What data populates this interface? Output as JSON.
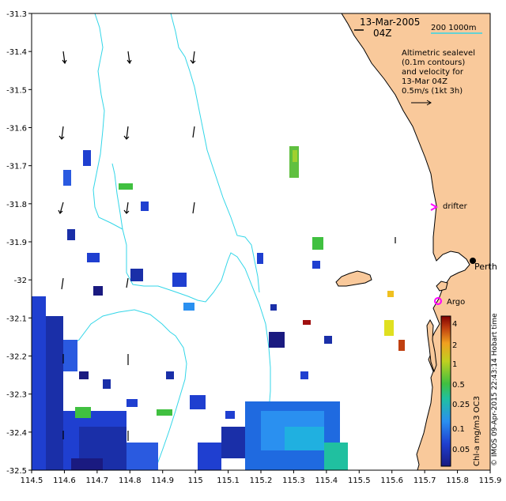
{
  "map": {
    "date_label": "13-Mar-2005",
    "time_label": "04Z",
    "scale_label": "200 1000m",
    "legend_lines": [
      "Altimetric sealevel",
      "(0.1m contours)",
      "and velocity for",
      "13-Mar 04Z",
      "0.5m/s (1kt 3h)"
    ],
    "drifter_label": "drifter",
    "argo_label": "Argo",
    "city_label": "Perth",
    "colorbar_title": "Chl-a mg/m3 OC3",
    "credit": "© IMOS 09-Apr-2015 22:43:14 Hobart time",
    "x_ticks": [
      "114.5",
      "114.6",
      "114.7",
      "114.8",
      "114.9",
      "115",
      "115.1",
      "115.2",
      "115.3",
      "115.4",
      "115.5",
      "115.6",
      "115.7",
      "115.8",
      "115.9"
    ],
    "y_ticks": [
      "-31.3",
      "-31.4",
      "-31.5",
      "-31.6",
      "-31.7",
      "-31.8",
      "-31.9",
      "-32",
      "-32.1",
      "-32.2",
      "-32.3",
      "-32.4",
      "-32.5"
    ],
    "colorbar_ticks": [
      "4",
      "2",
      "1",
      "0.5",
      "0.25",
      "0.1",
      "0.05"
    ],
    "colors": {
      "land": "#f9c99b",
      "ocean": "#ffffff",
      "contour": "#33d6e8",
      "drifter": "#ff00ff",
      "argo": "#ff00ff"
    }
  }
}
